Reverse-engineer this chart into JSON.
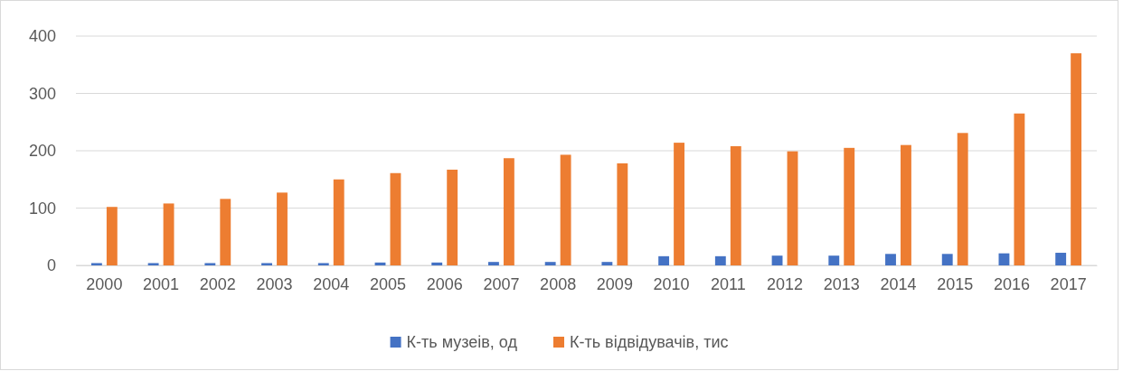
{
  "chart_data": {
    "type": "bar",
    "categories": [
      "2000",
      "2001",
      "2002",
      "2003",
      "2004",
      "2005",
      "2006",
      "2007",
      "2008",
      "2009",
      "2010",
      "2011",
      "2012",
      "2013",
      "2014",
      "2015",
      "2016",
      "2017"
    ],
    "series": [
      {
        "name": "К-ть музеів, од",
        "color": "#4472c4",
        "values": [
          4,
          4,
          4,
          4,
          4,
          5,
          5,
          6,
          6,
          6,
          16,
          16,
          17,
          17,
          20,
          20,
          21,
          22
        ]
      },
      {
        "name": "К-ть відвідувачів, тис",
        "color": "#ed7d31",
        "values": [
          102,
          108,
          116,
          127,
          150,
          161,
          167,
          187,
          193,
          178,
          214,
          208,
          199,
          205,
          210,
          231,
          265,
          370
        ]
      }
    ],
    "ylim": [
      0,
      400
    ],
    "yticks": [
      0,
      100,
      200,
      300,
      400
    ],
    "grid": "y",
    "legend": "bottom"
  }
}
